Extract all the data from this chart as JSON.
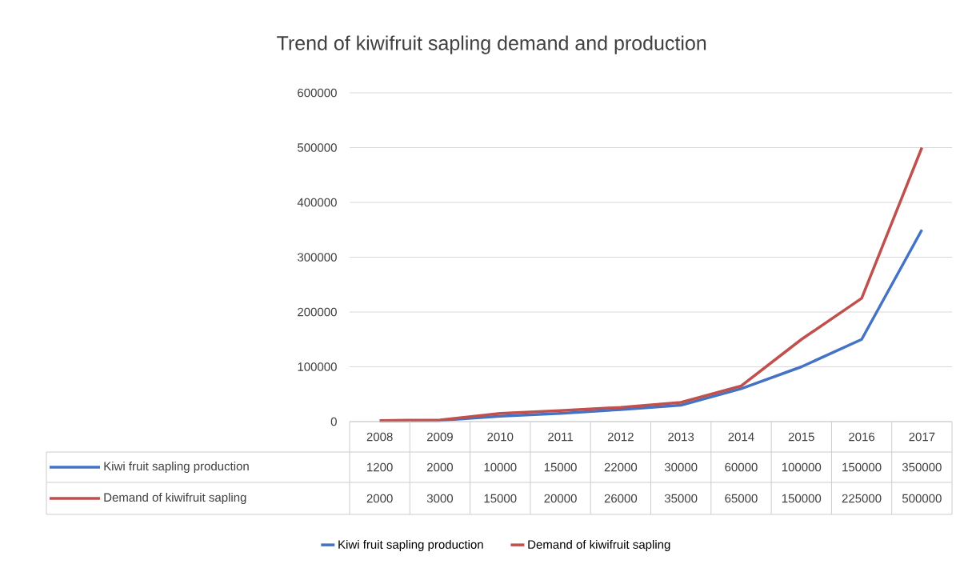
{
  "chart_data": {
    "type": "line",
    "title": "Trend of kiwifruit sapling demand and production",
    "categories": [
      "2008",
      "2009",
      "2010",
      "2011",
      "2012",
      "2013",
      "2014",
      "2015",
      "2016",
      "2017"
    ],
    "series": [
      {
        "name": "Kiwi fruit sapling production",
        "color": "#4472c4",
        "values": [
          1200,
          2000,
          10000,
          15000,
          22000,
          30000,
          60000,
          100000,
          150000,
          350000
        ]
      },
      {
        "name": "Demand of kiwifruit sapling",
        "color": "#c0504d",
        "values": [
          2000,
          3000,
          15000,
          20000,
          26000,
          35000,
          65000,
          150000,
          225000,
          500000
        ]
      }
    ],
    "ylim": [
      0,
      600000
    ],
    "yticks": [
      0,
      100000,
      200000,
      300000,
      400000,
      500000,
      600000
    ],
    "grid": "y",
    "legend": "bottom",
    "data_labels": true,
    "marker": "none",
    "line_style": "solid"
  }
}
